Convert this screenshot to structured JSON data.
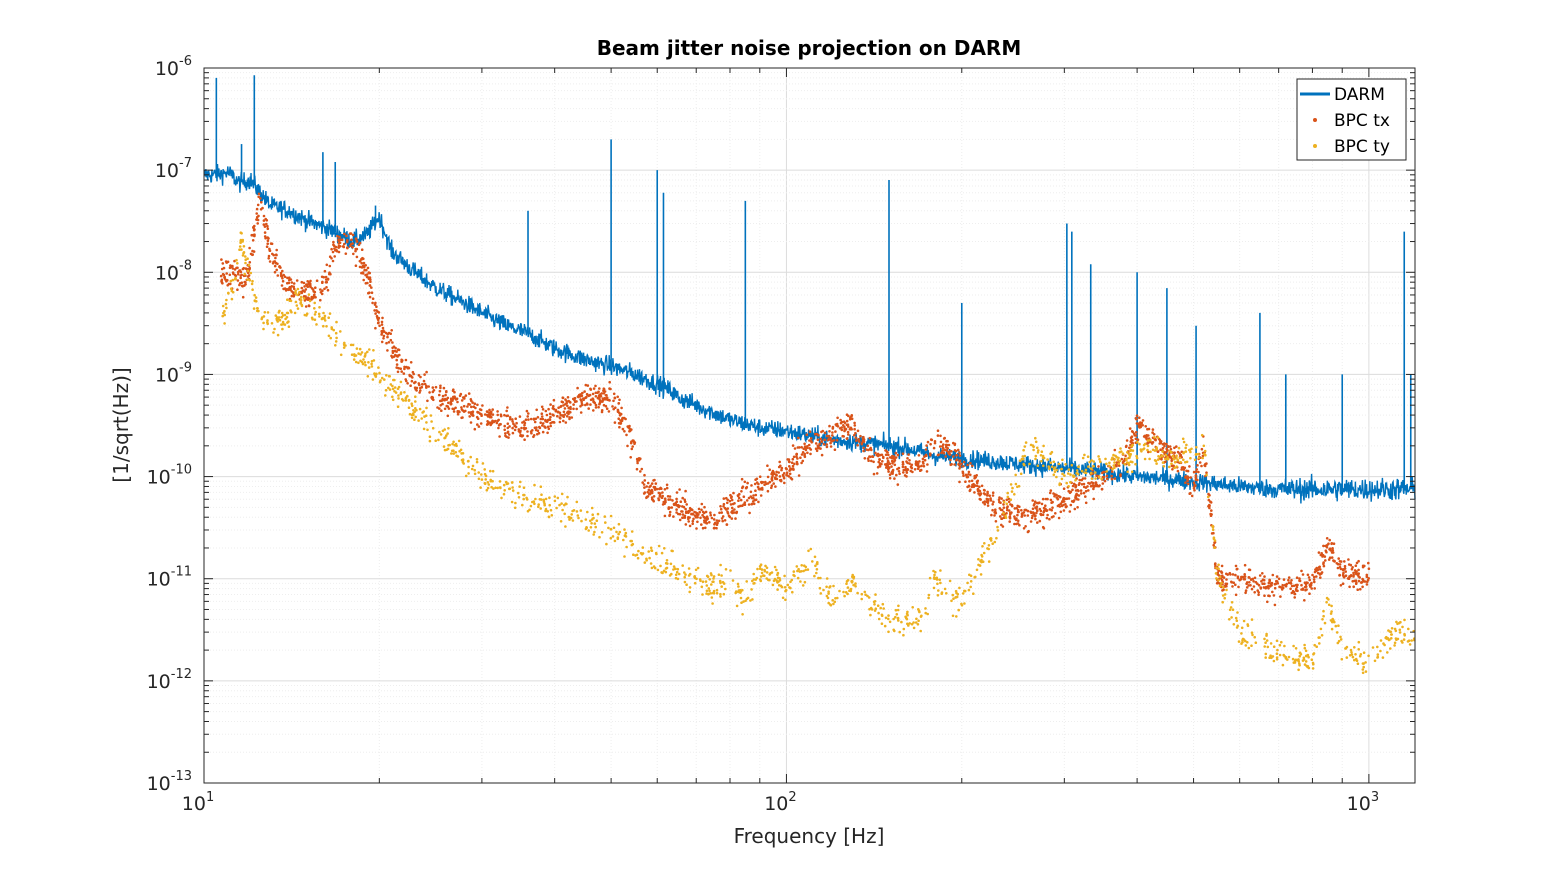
{
  "chart_data": {
    "type": "line",
    "title": "Beam jitter noise projection on DARM",
    "xlabel": "Frequency [Hz]",
    "ylabel": "[1/sqrt(Hz)]",
    "x_scale": "log",
    "y_scale": "log",
    "xlim": [
      10,
      1200
    ],
    "ylim": [
      1e-13,
      1e-06
    ],
    "grid": true,
    "minor_grid": true,
    "legend_position": "top-right",
    "x_ticks": [
      {
        "base": "10",
        "exp": "1",
        "value": 10
      },
      {
        "base": "10",
        "exp": "2",
        "value": 100
      },
      {
        "base": "10",
        "exp": "3",
        "value": 1000
      }
    ],
    "y_ticks": [
      {
        "base": "10",
        "exp": "-6",
        "value": 1e-06
      },
      {
        "base": "10",
        "exp": "-7",
        "value": 1e-07
      },
      {
        "base": "10",
        "exp": "-8",
        "value": 1e-08
      },
      {
        "base": "10",
        "exp": "-9",
        "value": 1e-09
      },
      {
        "base": "10",
        "exp": "-10",
        "value": 1e-10
      },
      {
        "base": "10",
        "exp": "-11",
        "value": 1e-11
      },
      {
        "base": "10",
        "exp": "-12",
        "value": 1e-12
      },
      {
        "base": "10",
        "exp": "-13",
        "value": 1e-13
      }
    ],
    "series": [
      {
        "name": "DARM",
        "style": "line",
        "color": "#0072BD",
        "x": [
          10,
          10.5,
          11,
          11.5,
          12,
          12.5,
          13,
          14,
          15,
          16,
          17,
          18,
          19,
          20,
          21,
          23,
          25,
          28,
          30,
          33,
          36,
          40,
          45,
          50,
          55,
          60,
          63,
          65,
          70,
          75,
          80,
          90,
          100,
          110,
          120,
          130,
          140,
          150,
          160,
          180,
          200,
          230,
          260,
          300,
          350,
          400,
          450,
          500,
          600,
          700,
          800,
          900,
          1000,
          1100,
          1200
        ],
        "y": [
          9e-08,
          9e-08,
          9.5e-08,
          7.5e-08,
          8e-08,
          6e-08,
          4.5e-08,
          4e-08,
          3.2e-08,
          2.8e-08,
          2.4e-08,
          2e-08,
          2.3e-08,
          3.5e-08,
          1.6e-08,
          1e-08,
          7e-09,
          5e-09,
          4e-09,
          3e-09,
          2.5e-09,
          1.8e-09,
          1.4e-09,
          1.2e-09,
          1e-09,
          8e-10,
          7e-10,
          6e-10,
          5e-10,
          4.2e-10,
          3.6e-10,
          3e-10,
          2.8e-10,
          2.5e-10,
          2.3e-10,
          2.2e-10,
          2.1e-10,
          2e-10,
          1.9e-10,
          1.6e-10,
          1.5e-10,
          1.4e-10,
          1.3e-10,
          1.2e-10,
          1.1e-10,
          1e-10,
          9.5e-11,
          9e-11,
          8e-11,
          7.5e-11,
          7.5e-11,
          7.5e-11,
          7.5e-11,
          7.5e-11,
          7.5e-11
        ],
        "peaks": [
          {
            "x": 10.5,
            "y": 8e-07
          },
          {
            "x": 11.6,
            "y": 1.8e-07
          },
          {
            "x": 12.2,
            "y": 8.5e-07
          },
          {
            "x": 16,
            "y": 1.5e-07
          },
          {
            "x": 16.8,
            "y": 1.2e-07
          },
          {
            "x": 19.7,
            "y": 4.5e-08
          },
          {
            "x": 36,
            "y": 4e-08
          },
          {
            "x": 50,
            "y": 2e-07
          },
          {
            "x": 60,
            "y": 1e-07
          },
          {
            "x": 61.5,
            "y": 6e-08
          },
          {
            "x": 85,
            "y": 5e-08
          },
          {
            "x": 150,
            "y": 8e-08
          },
          {
            "x": 200,
            "y": 5e-09
          },
          {
            "x": 303,
            "y": 3e-08
          },
          {
            "x": 309,
            "y": 2.5e-08
          },
          {
            "x": 333,
            "y": 1.2e-08
          },
          {
            "x": 400,
            "y": 1e-08
          },
          {
            "x": 450,
            "y": 7e-09
          },
          {
            "x": 505,
            "y": 3e-09
          },
          {
            "x": 650,
            "y": 4e-09
          },
          {
            "x": 720,
            "y": 1e-09
          },
          {
            "x": 900,
            "y": 1e-09
          },
          {
            "x": 1150,
            "y": 2.5e-08
          },
          {
            "x": 1180,
            "y": 1e-09
          }
        ]
      },
      {
        "name": "BPC tx",
        "style": "points",
        "color": "#D95319",
        "x": [
          10.7,
          11.2,
          11.8,
          12.5,
          13,
          14,
          15,
          16,
          17,
          18,
          19,
          20,
          22,
          25,
          28,
          30,
          33,
          36,
          40,
          45,
          50,
          55,
          57,
          60,
          65,
          70,
          75,
          80,
          90,
          100,
          110,
          120,
          130,
          140,
          150,
          170,
          180,
          200,
          230,
          260,
          300,
          350,
          380,
          400,
          430,
          470,
          500,
          520,
          550,
          600,
          700,
          800,
          850,
          900,
          1000
        ],
        "y": [
          1e-08,
          1e-08,
          8e-09,
          5e-08,
          1.5e-08,
          7e-09,
          6e-09,
          7e-09,
          2e-08,
          2e-08,
          1e-08,
          3e-09,
          1.2e-09,
          6e-10,
          5e-10,
          4e-10,
          3.2e-10,
          3e-10,
          4e-10,
          6e-10,
          6e-10,
          2e-10,
          8e-11,
          7e-11,
          5e-11,
          4e-11,
          4e-11,
          5e-11,
          8e-11,
          1.2e-10,
          2e-10,
          2.5e-10,
          3.5e-10,
          1.5e-10,
          1.3e-10,
          1.2e-10,
          2.5e-10,
          1.2e-10,
          5e-11,
          4e-11,
          6e-11,
          1e-10,
          1.5e-10,
          3e-10,
          2e-10,
          1.5e-10,
          8e-11,
          2e-10,
          1e-11,
          1e-11,
          8e-12,
          9e-12,
          2e-11,
          1.2e-11,
          1e-11
        ]
      },
      {
        "name": "BPC ty",
        "style": "points",
        "color": "#EDB120",
        "x": [
          10.7,
          11,
          11.6,
          12.3,
          13,
          14,
          14.5,
          30,
          33,
          36,
          40,
          45,
          50,
          55,
          70,
          75,
          80,
          85,
          90,
          100,
          110,
          120,
          130,
          140,
          150,
          170,
          180,
          200,
          230,
          260,
          300,
          380,
          420,
          470,
          520,
          550,
          600,
          700,
          800,
          850,
          900,
          1000,
          1100,
          1200
        ],
        "y": [
          3e-09,
          5e-09,
          2e-08,
          5e-09,
          3e-09,
          4e-09,
          6e-09,
          1e-10,
          8e-11,
          6e-11,
          5e-11,
          4e-11,
          3e-11,
          2e-11,
          1e-11,
          8e-12,
          1e-11,
          6e-12,
          1.2e-11,
          8e-12,
          1.5e-11,
          6e-12,
          1e-11,
          5e-12,
          4e-12,
          4e-12,
          1e-11,
          6e-12,
          3e-11,
          2e-10,
          1e-10,
          1.5e-10,
          2e-10,
          1.5e-10,
          2e-10,
          1e-11,
          3e-12,
          2e-12,
          1.5e-12,
          6e-12,
          2e-12,
          1.5e-12,
          3e-12,
          2.5e-12
        ]
      }
    ]
  }
}
